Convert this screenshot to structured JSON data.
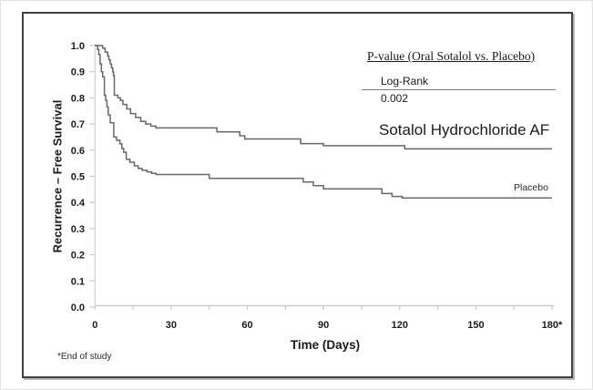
{
  "figure": {
    "footnote": "*End of study",
    "pvalue_box": {
      "title": "P-value (Oral Sotalol vs. Placebo)",
      "method": "Log-Rank",
      "value": "0.002"
    },
    "series_labels": {
      "sotalol": "Sotalol Hydrochloride AF",
      "placebo": "Placebo"
    }
  },
  "colors": {
    "curve": "#686868",
    "axis": "#cfcfcf",
    "tick": "#c9c9c9",
    "text": "#1b1b1b",
    "border": "#3f3f3f"
  },
  "chart_data": {
    "type": "line",
    "subtype": "kaplan-meier-step",
    "title": "",
    "xlabel": "Time (Days)",
    "ylabel": "Recurrence – Free Survival",
    "xlim": [
      0,
      180
    ],
    "ylim": [
      0.0,
      1.0
    ],
    "x_ticks": [
      0,
      30,
      60,
      90,
      120,
      150,
      180
    ],
    "x_tick_labels": [
      "0",
      "30",
      "60",
      "90",
      "120",
      "150",
      "180*"
    ],
    "x_minor_ticks": [
      15,
      45,
      75,
      105,
      135,
      165
    ],
    "y_ticks": [
      0.0,
      0.1,
      0.2,
      0.3,
      0.4,
      0.5,
      0.6,
      0.7,
      0.8,
      0.9,
      1.0
    ],
    "y_tick_labels": [
      "0.0",
      "0.1",
      "0.2",
      "0.3",
      "0.4",
      "0.5",
      "0.6",
      "0.7",
      "0.8",
      "0.9",
      "1.0"
    ],
    "grid": false,
    "legend_position": "labels-on-curves",
    "annotations": [
      "P-value (Oral Sotalol vs. Placebo)",
      "Log-Rank",
      "0.002",
      "*End of study"
    ],
    "series": [
      {
        "name": "Sotalol Hydrochloride AF",
        "points": [
          [
            0,
            1.0
          ],
          [
            3,
            0.99
          ],
          [
            4,
            0.975
          ],
          [
            5,
            0.96
          ],
          [
            5.5,
            0.945
          ],
          [
            6,
            0.93
          ],
          [
            6.5,
            0.915
          ],
          [
            7,
            0.9
          ],
          [
            7.3,
            0.885
          ],
          [
            7.6,
            0.81
          ],
          [
            9,
            0.8
          ],
          [
            10,
            0.79
          ],
          [
            11,
            0.775
          ],
          [
            12.5,
            0.758
          ],
          [
            14,
            0.74
          ],
          [
            16,
            0.725
          ],
          [
            18,
            0.71
          ],
          [
            20,
            0.7
          ],
          [
            22,
            0.692
          ],
          [
            24,
            0.685
          ],
          [
            48,
            0.67
          ],
          [
            57,
            0.655
          ],
          [
            59,
            0.643
          ],
          [
            81,
            0.625
          ],
          [
            90,
            0.617
          ],
          [
            122,
            0.605
          ],
          [
            180,
            0.605
          ]
        ]
      },
      {
        "name": "Placebo",
        "points": [
          [
            0,
            1.0
          ],
          [
            1,
            0.985
          ],
          [
            1.5,
            0.965
          ],
          [
            2,
            0.93
          ],
          [
            2.5,
            0.9
          ],
          [
            3,
            0.88
          ],
          [
            3.7,
            0.81
          ],
          [
            4.2,
            0.79
          ],
          [
            4.7,
            0.765
          ],
          [
            5.2,
            0.735
          ],
          [
            6,
            0.705
          ],
          [
            7.4,
            0.65
          ],
          [
            8.5,
            0.638
          ],
          [
            9.8,
            0.624
          ],
          [
            10.6,
            0.606
          ],
          [
            11.3,
            0.592
          ],
          [
            12.3,
            0.565
          ],
          [
            13.7,
            0.554
          ],
          [
            15.5,
            0.54
          ],
          [
            17,
            0.53
          ],
          [
            18.6,
            0.523
          ],
          [
            20.5,
            0.517
          ],
          [
            22.3,
            0.511
          ],
          [
            24,
            0.507
          ],
          [
            45,
            0.492
          ],
          [
            82,
            0.478
          ],
          [
            86,
            0.464
          ],
          [
            90,
            0.452
          ],
          [
            113,
            0.434
          ],
          [
            117,
            0.423
          ],
          [
            121,
            0.417
          ],
          [
            180,
            0.417
          ]
        ]
      }
    ]
  }
}
